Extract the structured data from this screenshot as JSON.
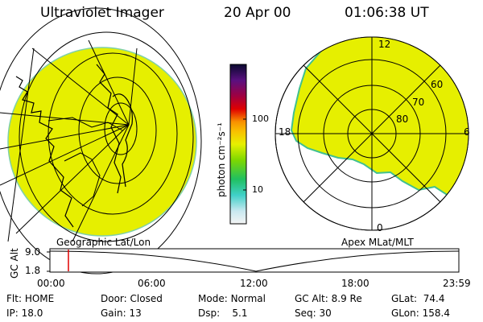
{
  "header": {
    "title": "Ultraviolet Imager",
    "date": "20 Apr 00",
    "time": "01:06:38 UT"
  },
  "left_panel": {
    "label": "Geographic Lat/Lon",
    "disk_color": "#e6ef00"
  },
  "right_panel": {
    "label": "Apex MLat/MLT",
    "mlt_labels": [
      "12",
      "18",
      "6",
      "0"
    ],
    "mlat_labels": [
      "60",
      "70",
      "80"
    ],
    "disk_color": "#e6ef00"
  },
  "colorbar": {
    "unit_label": "photon cm⁻²s⁻¹",
    "ticks": [
      "100",
      "10"
    ]
  },
  "timeline": {
    "ylabel": "GC Alt",
    "y_ticks": [
      "9.0",
      "1.8"
    ],
    "x_ticks": [
      "00:00",
      "06:00",
      "12:00",
      "18:00",
      "23:59"
    ],
    "cursor_time": "01:06:38",
    "cursor_color": "#e00000"
  },
  "status": {
    "rows": [
      [
        {
          "k": "Flt:",
          "v": "HOME"
        },
        {
          "k": "Door:",
          "v": "Closed"
        },
        {
          "k": "Mode:",
          "v": "Normal"
        },
        {
          "k": "GC Alt:",
          "v": "8.9 Re"
        },
        {
          "k": "GLat:",
          "v": "74.4"
        }
      ],
      [
        {
          "k": "IP:",
          "v": "18.0"
        },
        {
          "k": "Gain:",
          "v": "13"
        },
        {
          "k": "Dsp:",
          "v": "5.1"
        },
        {
          "k": "Seq:",
          "v": "30"
        },
        {
          "k": "GLon:",
          "v": "158.4"
        }
      ]
    ]
  }
}
